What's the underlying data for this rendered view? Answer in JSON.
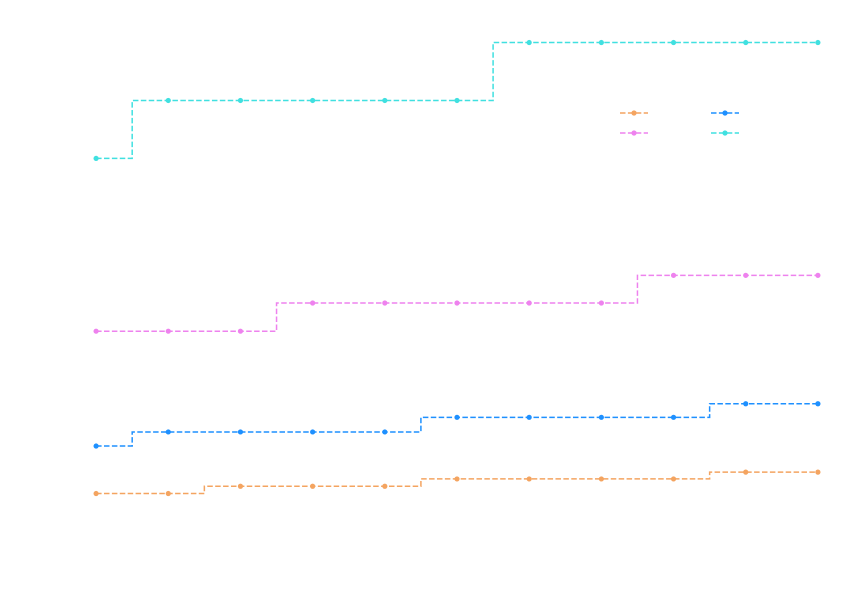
{
  "chart_data": {
    "type": "line",
    "step": "mid",
    "line_style": "dashed",
    "marker": "circle",
    "title": "",
    "xlabel": "",
    "ylabel": "",
    "grid": false,
    "legend": {
      "placement": "top-right",
      "columns": 2,
      "labels_visible": false
    },
    "x": [
      0,
      1,
      2,
      3,
      4,
      5,
      6,
      7,
      8,
      9,
      10
    ],
    "xlim": [
      -0.5,
      10.5
    ],
    "ylim": [
      0,
      100
    ],
    "series": [
      {
        "color": "#f4a460",
        "values": [
          11.2,
          11.2,
          12.6,
          12.6,
          12.6,
          14.0,
          14.0,
          14.0,
          14.0,
          15.3,
          15.3
        ]
      },
      {
        "color": "#1e90ff",
        "values": [
          20.3,
          23.0,
          23.0,
          23.0,
          23.0,
          25.8,
          25.8,
          25.8,
          25.8,
          28.4,
          28.4
        ]
      },
      {
        "color": "#ee82ee",
        "values": [
          42.3,
          42.3,
          42.3,
          47.7,
          47.7,
          47.7,
          47.7,
          47.7,
          53.0,
          53.0,
          53.0
        ]
      },
      {
        "color": "#40e0e0",
        "values": [
          75.4,
          86.5,
          86.5,
          86.5,
          86.5,
          86.5,
          97.6,
          97.6,
          97.6,
          97.6,
          97.6
        ]
      }
    ]
  }
}
